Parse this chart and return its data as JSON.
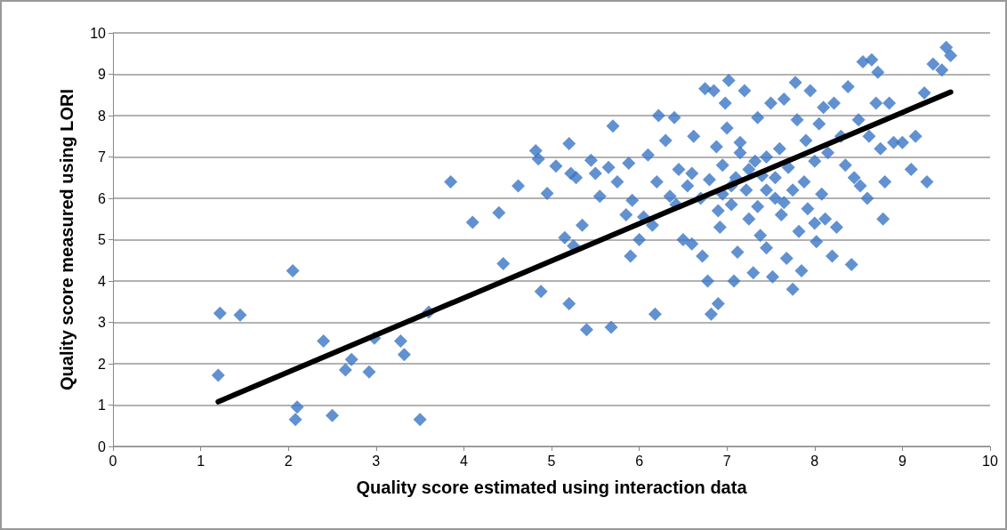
{
  "chart_data": {
    "type": "scatter",
    "xlabel": "Quality score estimated using interaction data",
    "ylabel": "Quality score measured using LORI",
    "xlim": [
      0,
      10
    ],
    "xticks": [
      0,
      1,
      2,
      3,
      4,
      5,
      6,
      7,
      8,
      9,
      10
    ],
    "ylim": [
      0,
      10
    ],
    "yticks": [
      0,
      1,
      2,
      3,
      4,
      5,
      6,
      7,
      8,
      9,
      10
    ],
    "grid": "y",
    "series": [
      {
        "marker": "diamond",
        "color": "#3a75c4",
        "x": [
          1.22,
          1.45,
          1.2,
          2.05,
          2.1,
          2.08,
          2.5,
          2.4,
          2.65,
          2.72,
          2.92,
          2.98,
          3.28,
          3.32,
          3.5,
          3.6,
          3.85,
          4.1,
          4.4,
          4.45,
          4.62,
          4.82,
          4.85,
          4.88,
          4.95,
          5.05,
          5.15,
          5.2,
          5.2,
          5.25,
          5.22,
          5.28,
          5.35,
          5.4,
          5.45,
          5.5,
          5.55,
          5.65,
          5.68,
          5.7,
          5.75,
          5.85,
          5.88,
          5.9,
          5.92,
          6.0,
          6.05,
          6.1,
          6.15,
          6.2,
          6.18,
          6.22,
          6.3,
          6.35,
          6.4,
          6.42,
          6.45,
          6.5,
          6.55,
          6.6,
          6.62,
          6.7,
          6.72,
          6.75,
          6.78,
          6.8,
          6.82,
          6.85,
          6.88,
          6.9,
          6.92,
          6.95,
          6.98,
          7.0,
          7.02,
          7.05,
          7.08,
          7.1,
          7.12,
          7.15,
          7.2,
          7.22,
          7.25,
          7.3,
          7.32,
          7.35,
          7.38,
          7.4,
          7.45,
          7.5,
          7.52,
          7.55,
          7.6,
          7.62,
          7.65,
          7.68,
          7.7,
          7.75,
          7.78,
          7.8,
          7.82,
          7.85,
          7.88,
          7.9,
          7.92,
          7.95,
          8.0,
          8.02,
          8.05,
          8.08,
          8.1,
          8.12,
          8.15,
          8.2,
          8.22,
          8.25,
          8.3,
          8.35,
          8.38,
          8.42,
          8.45,
          8.5,
          8.52,
          8.55,
          8.6,
          8.62,
          8.65,
          8.7,
          8.72,
          8.75,
          8.8,
          8.78,
          8.85,
          8.9,
          9.0,
          9.1,
          9.15,
          9.25,
          9.28,
          9.35,
          9.45,
          9.5,
          9.55,
          7.05,
          7.25,
          7.45,
          7.65,
          6.95,
          7.35,
          7.55,
          6.6,
          6.9,
          7.15,
          7.75,
          8.0,
          7.45
        ],
        "values": [
          3.22,
          3.18,
          1.72,
          4.25,
          0.95,
          0.65,
          0.75,
          2.55,
          1.85,
          2.1,
          1.8,
          2.62,
          2.55,
          2.22,
          0.65,
          3.25,
          6.4,
          5.42,
          5.65,
          4.42,
          6.3,
          7.15,
          6.95,
          3.75,
          6.12,
          6.78,
          5.05,
          7.32,
          3.45,
          4.85,
          6.6,
          6.5,
          5.35,
          2.82,
          6.92,
          6.6,
          6.05,
          6.75,
          2.88,
          7.75,
          6.4,
          5.6,
          6.85,
          4.6,
          5.95,
          5.0,
          5.55,
          7.05,
          5.35,
          6.4,
          3.2,
          8.0,
          7.4,
          6.05,
          7.95,
          5.85,
          6.7,
          5.0,
          6.3,
          4.9,
          7.5,
          6.0,
          4.6,
          8.65,
          4.0,
          6.45,
          3.2,
          8.6,
          7.25,
          3.45,
          5.3,
          6.8,
          8.3,
          7.7,
          8.85,
          5.85,
          4.0,
          6.5,
          4.7,
          7.35,
          8.6,
          6.2,
          5.5,
          4.2,
          6.9,
          7.95,
          5.1,
          6.55,
          4.8,
          8.3,
          4.1,
          6.0,
          7.2,
          5.6,
          8.4,
          4.55,
          6.75,
          3.8,
          8.8,
          7.9,
          5.2,
          4.25,
          6.4,
          7.4,
          5.75,
          8.6,
          6.9,
          4.95,
          7.8,
          6.1,
          8.2,
          5.5,
          7.1,
          4.6,
          8.3,
          5.3,
          7.5,
          6.8,
          8.7,
          4.4,
          6.5,
          7.9,
          6.3,
          9.3,
          6.0,
          7.5,
          9.35,
          8.3,
          9.05,
          7.2,
          6.4,
          5.5,
          8.3,
          7.35,
          7.35,
          6.7,
          7.5,
          8.55,
          6.4,
          9.25,
          9.1,
          9.65,
          9.45,
          6.3,
          6.7,
          6.2,
          5.9,
          6.1,
          5.8,
          6.5,
          6.6,
          5.7,
          7.1,
          6.2,
          5.4,
          7.0
        ]
      },
      {
        "type": "line",
        "marker": "none",
        "color": "#000000",
        "x": [
          1.2,
          9.55
        ],
        "values": [
          1.08,
          8.57
        ]
      }
    ]
  }
}
